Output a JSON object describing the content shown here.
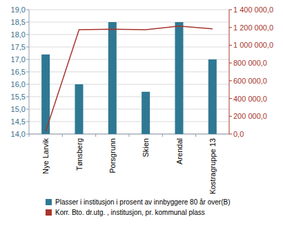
{
  "chart_data": {
    "type": "bar",
    "categories": [
      "Nye Larvik",
      "Tønsberg",
      "Porsgrunn",
      "Skien",
      "Arendal",
      "Kostragruppe 13"
    ],
    "series": [
      {
        "name": "Plasser i institusjon i prosent av innbyggere 80 år over(B)",
        "type": "bar",
        "color": "#2f7894",
        "values": [
          17.2,
          16.0,
          18.5,
          15.7,
          18.5,
          17.0
        ]
      },
      {
        "name": "Korr. Bto. dr.utg. , institusjon, pr. kommunal plass",
        "type": "line",
        "axis": "y2",
        "color": "#a8352d",
        "values": [
          30000,
          1175000,
          1180000,
          1175000,
          1215000,
          1185000
        ]
      }
    ],
    "ylim": [
      14,
      19
    ],
    "yticks": [
      {
        "value": 14,
        "label": "14,0"
      },
      {
        "value": 14.5,
        "label": "14,5"
      },
      {
        "value": 15,
        "label": "15,0"
      },
      {
        "value": 15.5,
        "label": "15,5"
      },
      {
        "value": 16,
        "label": "16,0"
      },
      {
        "value": 16.5,
        "label": "16,5"
      },
      {
        "value": 17,
        "label": "17,0"
      },
      {
        "value": 17.5,
        "label": "17,5"
      },
      {
        "value": 18,
        "label": "18,0"
      },
      {
        "value": 18.5,
        "label": "18,5"
      },
      {
        "value": 19,
        "label": "19,0"
      }
    ],
    "y2lim": [
      0,
      1400000
    ],
    "y2ticks": [
      {
        "value": 0,
        "label": "0,0"
      },
      {
        "value": 200000,
        "label": "200 000,0"
      },
      {
        "value": 400000,
        "label": "400 000,0"
      },
      {
        "value": 600000,
        "label": "600 000,0"
      },
      {
        "value": 800000,
        "label": "800 000,0"
      },
      {
        "value": 1000000,
        "label": "1 000 000,0"
      },
      {
        "value": 1200000,
        "label": "1 200 000,0"
      },
      {
        "value": 1400000,
        "label": "1 400 000,0"
      }
    ],
    "grid": true,
    "legend": "bottom"
  }
}
